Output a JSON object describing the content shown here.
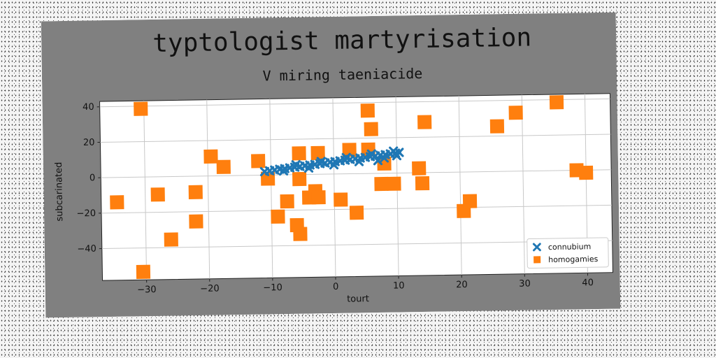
{
  "chart_data": {
    "type": "scatter",
    "title": "typtologist martyrisation",
    "subtitle": "V miring taeniacide",
    "xlabel": "tourt",
    "ylabel": "subcarinated",
    "xlim": [
      -37,
      44
    ],
    "ylim": [
      -58,
      43
    ],
    "xticks": [
      -30,
      -20,
      -10,
      0,
      10,
      20,
      30,
      40
    ],
    "yticks": [
      -40,
      -20,
      0,
      20,
      40
    ],
    "grid": true,
    "legend_position": "lower-right",
    "series": [
      {
        "name": "connubium",
        "marker": "x",
        "color": "#1f77b4",
        "points": [
          [
            -11.0,
            2.0
          ],
          [
            -10.2,
            2.4
          ],
          [
            -9.4,
            2.8
          ],
          [
            -8.6,
            3.2
          ],
          [
            -7.8,
            3.5
          ],
          [
            -7.0,
            3.9
          ],
          [
            -6.2,
            4.2
          ],
          [
            -5.4,
            4.6
          ],
          [
            -4.6,
            4.9
          ],
          [
            -3.8,
            5.3
          ],
          [
            -3.0,
            5.6
          ],
          [
            -2.2,
            6.0
          ],
          [
            -1.4,
            6.3
          ],
          [
            -0.6,
            6.7
          ],
          [
            0.2,
            7.0
          ],
          [
            1.0,
            7.4
          ],
          [
            1.8,
            7.7
          ],
          [
            2.6,
            8.1
          ],
          [
            3.4,
            8.4
          ],
          [
            4.2,
            8.8
          ],
          [
            5.0,
            9.1
          ],
          [
            5.8,
            9.5
          ],
          [
            6.6,
            9.8
          ],
          [
            7.4,
            10.2
          ],
          [
            8.2,
            10.5
          ],
          [
            9.0,
            10.9
          ],
          [
            9.8,
            11.2
          ],
          [
            10.4,
            11.6
          ],
          [
            -8.0,
            2.2
          ],
          [
            -4.0,
            3.6
          ],
          [
            0.0,
            5.2
          ],
          [
            4.0,
            6.8
          ],
          [
            8.0,
            8.6
          ],
          [
            -6.0,
            5.6
          ],
          [
            -2.0,
            7.2
          ],
          [
            2.0,
            9.2
          ],
          [
            6.0,
            11.0
          ],
          [
            10.0,
            9.8
          ],
          [
            9.5,
            12.4
          ],
          [
            7.0,
            7.2
          ]
        ]
      },
      {
        "name": "homogamies",
        "marker": "s",
        "color": "#ff7f0e",
        "points": [
          [
            -30.5,
            38.5
          ],
          [
            -34.5,
            -14
          ],
          [
            -28,
            -10
          ],
          [
            -26,
            -35.5
          ],
          [
            -22,
            -9
          ],
          [
            -22,
            -25.5
          ],
          [
            -19.5,
            11
          ],
          [
            -17.5,
            5
          ],
          [
            -30.5,
            -53.5
          ],
          [
            -12,
            8
          ],
          [
            -10.5,
            -2
          ],
          [
            -9,
            -23.5
          ],
          [
            -7.5,
            -15
          ],
          [
            -6,
            -28.5
          ],
          [
            -5.5,
            -33.5
          ],
          [
            -5.5,
            12
          ],
          [
            -5.5,
            -2.5
          ],
          [
            -4,
            -13
          ],
          [
            -3,
            -9.5
          ],
          [
            -2.5,
            12
          ],
          [
            -2.5,
            -13
          ],
          [
            1,
            -14.5
          ],
          [
            2.5,
            13.5
          ],
          [
            3.5,
            -22
          ],
          [
            5.5,
            13.5
          ],
          [
            5.5,
            35.5
          ],
          [
            6,
            25
          ],
          [
            7.5,
            -6
          ],
          [
            8,
            5.5
          ],
          [
            9.5,
            -6
          ],
          [
            13.5,
            2.5
          ],
          [
            14,
            -6
          ],
          [
            14.5,
            28.5
          ],
          [
            20.5,
            -22
          ],
          [
            21.5,
            -16.5
          ],
          [
            26,
            25.5
          ],
          [
            29,
            33
          ],
          [
            35.5,
            38.5
          ],
          [
            38.5,
            0
          ],
          [
            40,
            -1.5
          ]
        ]
      }
    ]
  }
}
